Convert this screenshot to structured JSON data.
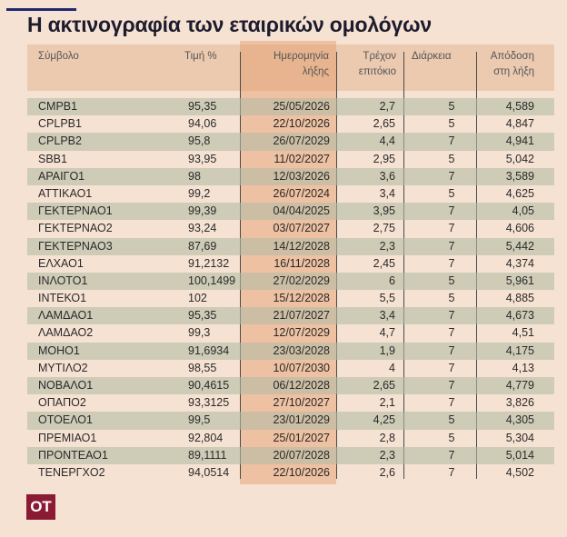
{
  "title": "Η ακτινογραφία των εταιρικών ομολόγων",
  "headers": {
    "symbol": "Σύμβολο",
    "price": "Τιμή %",
    "maturity_1": "Ημερομηνία",
    "maturity_2": "λήξης",
    "coupon_1": "Τρέχον",
    "coupon_2": "επιτόκιο",
    "duration": "Διάρκεια",
    "yield_1": "Απόδοση",
    "yield_2": "στη λήξη"
  },
  "rows": [
    [
      "CMPB1",
      "95,35",
      "25/05/2026",
      "2,7",
      "5",
      "4,589"
    ],
    [
      "CPLPB1",
      "94,06",
      "22/10/2026",
      "2,65",
      "5",
      "4,847"
    ],
    [
      "CPLPB2",
      "95,8",
      "26/07/2029",
      "4,4",
      "7",
      "4,941"
    ],
    [
      "SBB1",
      "93,95",
      "11/02/2027",
      "2,95",
      "5",
      "5,042"
    ],
    [
      "ΑΡΑΙΓΟ1",
      "98",
      "12/03/2026",
      "3,6",
      "7",
      "3,589"
    ],
    [
      "ΑΤΤΙΚΑΟ1",
      "99,2",
      "26/07/2024",
      "3,4",
      "5",
      "4,625"
    ],
    [
      "ΓΕΚΤΕΡΝΑΟ1",
      "99,39",
      "04/04/2025",
      "3,95",
      "7",
      "4,05"
    ],
    [
      "ΓΕΚΤΕΡΝΑΟ2",
      "93,24",
      "03/07/2027",
      "2,75",
      "7",
      "4,606"
    ],
    [
      "ΓΕΚΤΕΡΝΑΟ3",
      "87,69",
      "14/12/2028",
      "2,3",
      "7",
      "5,442"
    ],
    [
      "ΕΛΧΑΟ1",
      "91,2132",
      "16/11/2028",
      "2,45",
      "7",
      "4,374"
    ],
    [
      "ΙΝΛΟΤΟ1",
      "100,1499",
      "27/02/2029",
      "6",
      "5",
      "5,961"
    ],
    [
      "ΙΝΤΕΚΟ1",
      "102",
      "15/12/2028",
      "5,5",
      "5",
      "4,885"
    ],
    [
      "ΛΑΜΔΑΟ1",
      "95,35",
      "21/07/2027",
      "3,4",
      "7",
      "4,673"
    ],
    [
      "ΛΑΜΔΑΟ2",
      "99,3",
      "12/07/2029",
      "4,7",
      "7",
      "4,51"
    ],
    [
      "ΜΟΗΟ1",
      "91,6934",
      "23/03/2028",
      "1,9",
      "7",
      "4,175"
    ],
    [
      "ΜΥΤΙΛΟ2",
      "98,55",
      "10/07/2030",
      "4",
      "7",
      "4,13"
    ],
    [
      "ΝΟΒΑΛΟ1",
      "90,4615",
      "06/12/2028",
      "2,65",
      "7",
      "4,779"
    ],
    [
      "ΟΠΑΠΟ2",
      "93,3125",
      "27/10/2027",
      "2,1",
      "7",
      "3,826"
    ],
    [
      "ΟΤΟΕΛΟ1",
      "99,5",
      "23/01/2029",
      "4,25",
      "5",
      "4,305"
    ],
    [
      "ΠΡΕΜΙΑΟ1",
      "92,804",
      "25/01/2027",
      "2,8",
      "5",
      "5,304"
    ],
    [
      "ΠΡΟΝΤΕΑΟ1",
      "89,1111",
      "20/07/2028",
      "2,3",
      "7",
      "5,014"
    ],
    [
      "ΤΕΝΕΡΓΧΟ2",
      "94,0514",
      "22/10/2026",
      "2,6",
      "7",
      "4,502"
    ]
  ],
  "logo": "OT",
  "colors": {
    "accent_line": "#1f2a6e",
    "logo": "#8b1a33",
    "highlight_column": "#e2a070",
    "stripe": "#b4bca5"
  }
}
